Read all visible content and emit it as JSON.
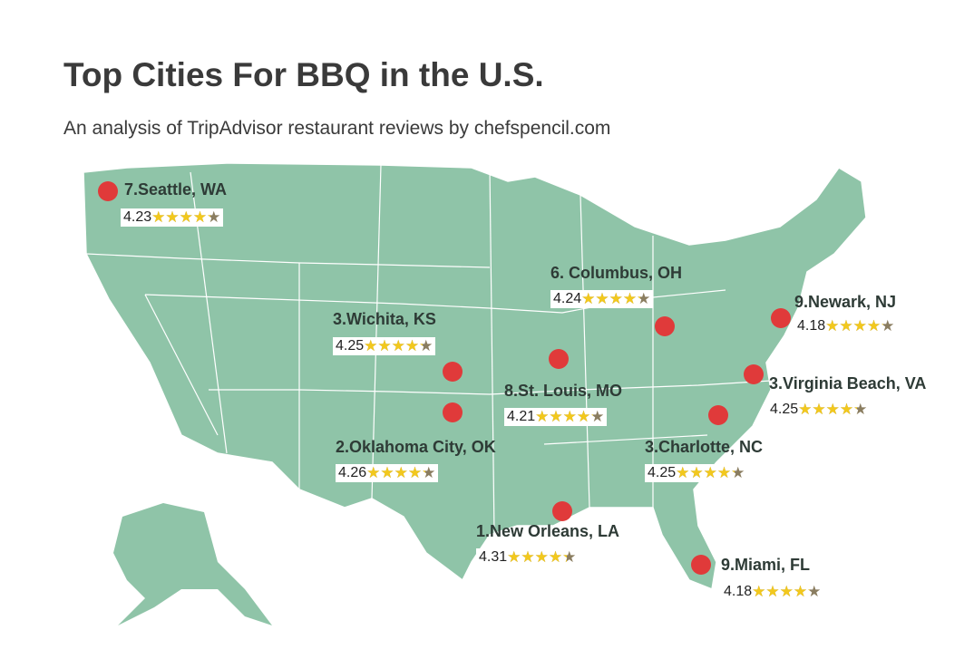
{
  "title": "Top Cities For BBQ in the U.S.",
  "subtitle": "An analysis of TripAdvisor restaurant reviews by chefspencil.com",
  "colors": {
    "land": "#8fc4a8",
    "border": "#ffffff",
    "marker": "#e03a3a",
    "star": "#f2c81d"
  },
  "cities": [
    {
      "label": "7.Seattle, WA",
      "rating": "4.23"
    },
    {
      "label": "6. Columbus, OH",
      "rating": "4.24"
    },
    {
      "label": "9.Newark, NJ",
      "rating": "4.18"
    },
    {
      "label": "3.Wichita, KS",
      "rating": "4.25"
    },
    {
      "label": "8.St. Louis, MO",
      "rating": "4.21"
    },
    {
      "label": "3.Virginia Beach, VA",
      "rating": "4.25"
    },
    {
      "label": "2.Oklahoma City, OK",
      "rating": "4.26"
    },
    {
      "label": "3.Charlotte, NC",
      "rating": "4.25"
    },
    {
      "label": "1.New Orleans, LA",
      "rating": "4.31"
    },
    {
      "label": "9.Miami, FL",
      "rating": "4.18"
    }
  ]
}
